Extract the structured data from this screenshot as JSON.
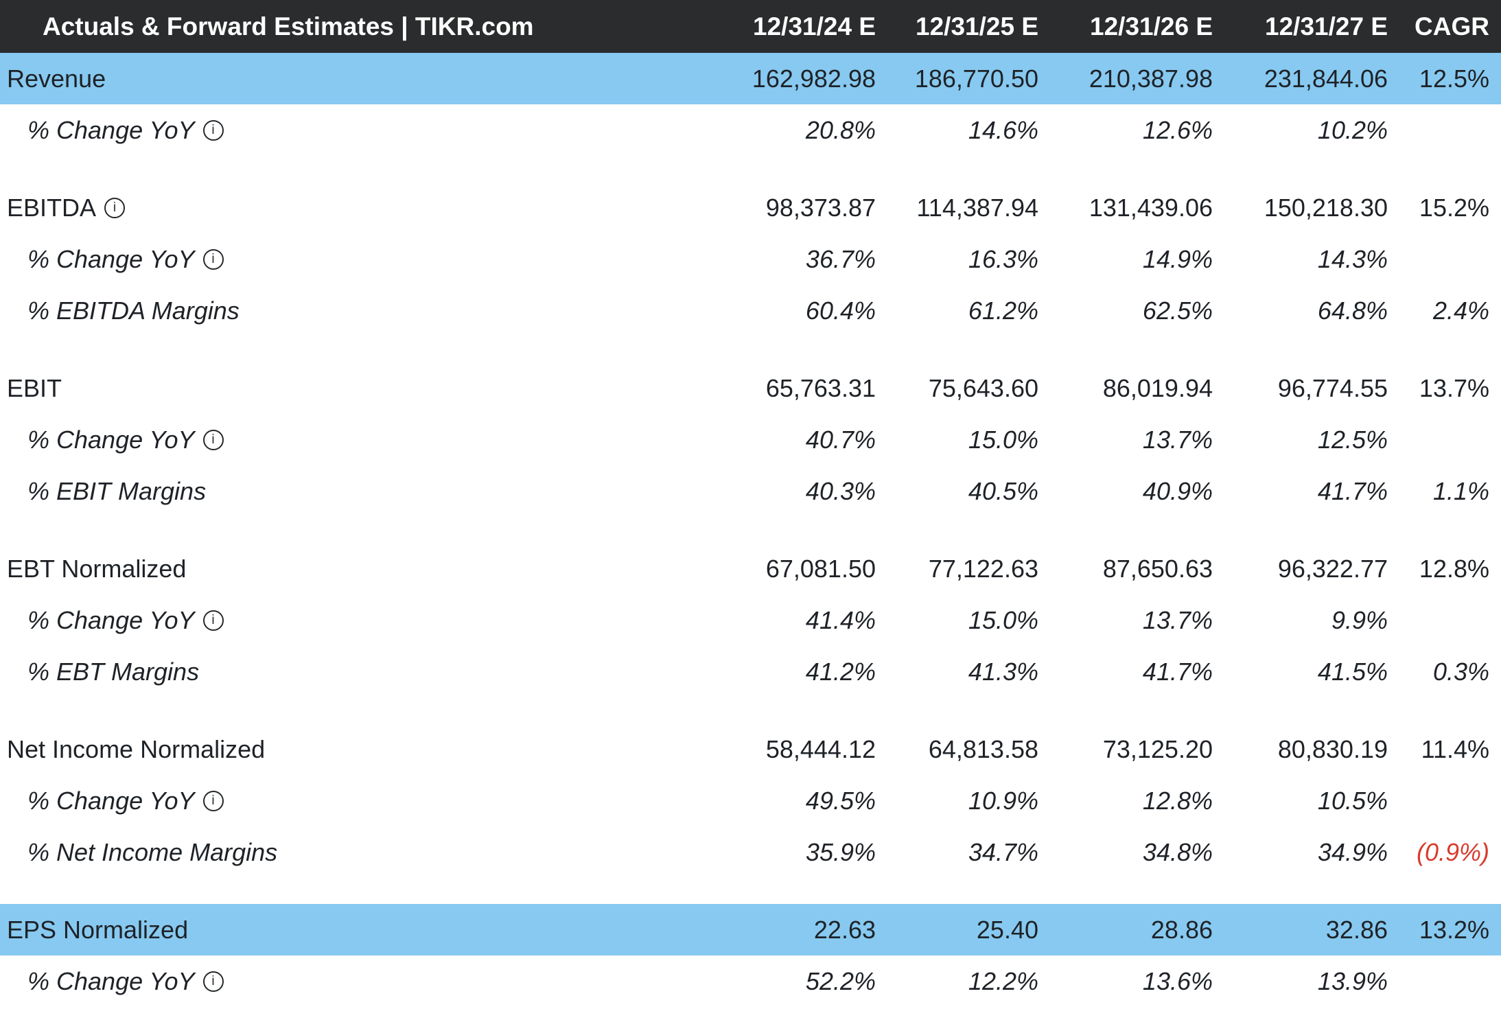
{
  "colors": {
    "header_bg": "#2a2c2d",
    "header_text": "#ffffff",
    "highlight_row": "#87c9f0",
    "body_text": "#1e2227",
    "negative_text": "#d83b2d"
  },
  "icons": {
    "info_glyph": "i"
  },
  "chart_data": {
    "type": "table",
    "title": "Actuals & Forward Estimates | TIKR.com",
    "columns": [
      "12/31/24 E",
      "12/31/25 E",
      "12/31/26 E",
      "12/31/27 E",
      "CAGR"
    ],
    "sections": [
      {
        "name": "Revenue",
        "rows": [
          {
            "label": "Revenue",
            "highlight": true,
            "sub": false,
            "info": false,
            "values": [
              "162,982.98",
              "186,770.50",
              "210,387.98",
              "231,844.06",
              "12.5%"
            ]
          },
          {
            "label": "% Change YoY",
            "highlight": false,
            "sub": true,
            "info": true,
            "values": [
              "20.8%",
              "14.6%",
              "12.6%",
              "10.2%",
              ""
            ]
          }
        ]
      },
      {
        "name": "EBITDA",
        "rows": [
          {
            "label": "EBITDA",
            "highlight": false,
            "sub": false,
            "info": true,
            "values": [
              "98,373.87",
              "114,387.94",
              "131,439.06",
              "150,218.30",
              "15.2%"
            ]
          },
          {
            "label": "% Change YoY",
            "highlight": false,
            "sub": true,
            "info": true,
            "values": [
              "36.7%",
              "16.3%",
              "14.9%",
              "14.3%",
              ""
            ]
          },
          {
            "label": "% EBITDA Margins",
            "highlight": false,
            "sub": true,
            "info": false,
            "values": [
              "60.4%",
              "61.2%",
              "62.5%",
              "64.8%",
              "2.4%"
            ]
          }
        ]
      },
      {
        "name": "EBIT",
        "rows": [
          {
            "label": "EBIT",
            "highlight": false,
            "sub": false,
            "info": false,
            "values": [
              "65,763.31",
              "75,643.60",
              "86,019.94",
              "96,774.55",
              "13.7%"
            ]
          },
          {
            "label": "% Change YoY",
            "highlight": false,
            "sub": true,
            "info": true,
            "values": [
              "40.7%",
              "15.0%",
              "13.7%",
              "12.5%",
              ""
            ]
          },
          {
            "label": "% EBIT Margins",
            "highlight": false,
            "sub": true,
            "info": false,
            "values": [
              "40.3%",
              "40.5%",
              "40.9%",
              "41.7%",
              "1.1%"
            ]
          }
        ]
      },
      {
        "name": "EBT Normalized",
        "rows": [
          {
            "label": "EBT Normalized",
            "highlight": false,
            "sub": false,
            "info": false,
            "values": [
              "67,081.50",
              "77,122.63",
              "87,650.63",
              "96,322.77",
              "12.8%"
            ]
          },
          {
            "label": "% Change YoY",
            "highlight": false,
            "sub": true,
            "info": true,
            "values": [
              "41.4%",
              "15.0%",
              "13.7%",
              "9.9%",
              ""
            ]
          },
          {
            "label": "% EBT Margins",
            "highlight": false,
            "sub": true,
            "info": false,
            "values": [
              "41.2%",
              "41.3%",
              "41.7%",
              "41.5%",
              "0.3%"
            ]
          }
        ]
      },
      {
        "name": "Net Income Normalized",
        "rows": [
          {
            "label": "Net Income Normalized",
            "highlight": false,
            "sub": false,
            "info": false,
            "values": [
              "58,444.12",
              "64,813.58",
              "73,125.20",
              "80,830.19",
              "11.4%"
            ]
          },
          {
            "label": "% Change YoY",
            "highlight": false,
            "sub": true,
            "info": true,
            "values": [
              "49.5%",
              "10.9%",
              "12.8%",
              "10.5%",
              ""
            ]
          },
          {
            "label": "% Net Income Margins",
            "highlight": false,
            "sub": true,
            "info": false,
            "values": [
              "35.9%",
              "34.7%",
              "34.8%",
              "34.9%",
              "(0.9%)"
            ]
          }
        ]
      },
      {
        "name": "EPS Normalized",
        "rows": [
          {
            "label": "EPS Normalized",
            "highlight": true,
            "sub": false,
            "info": false,
            "values": [
              "22.63",
              "25.40",
              "28.86",
              "32.86",
              "13.2%"
            ]
          },
          {
            "label": "% Change YoY",
            "highlight": false,
            "sub": true,
            "info": true,
            "values": [
              "52.2%",
              "12.2%",
              "13.6%",
              "13.9%",
              ""
            ]
          }
        ]
      }
    ]
  }
}
